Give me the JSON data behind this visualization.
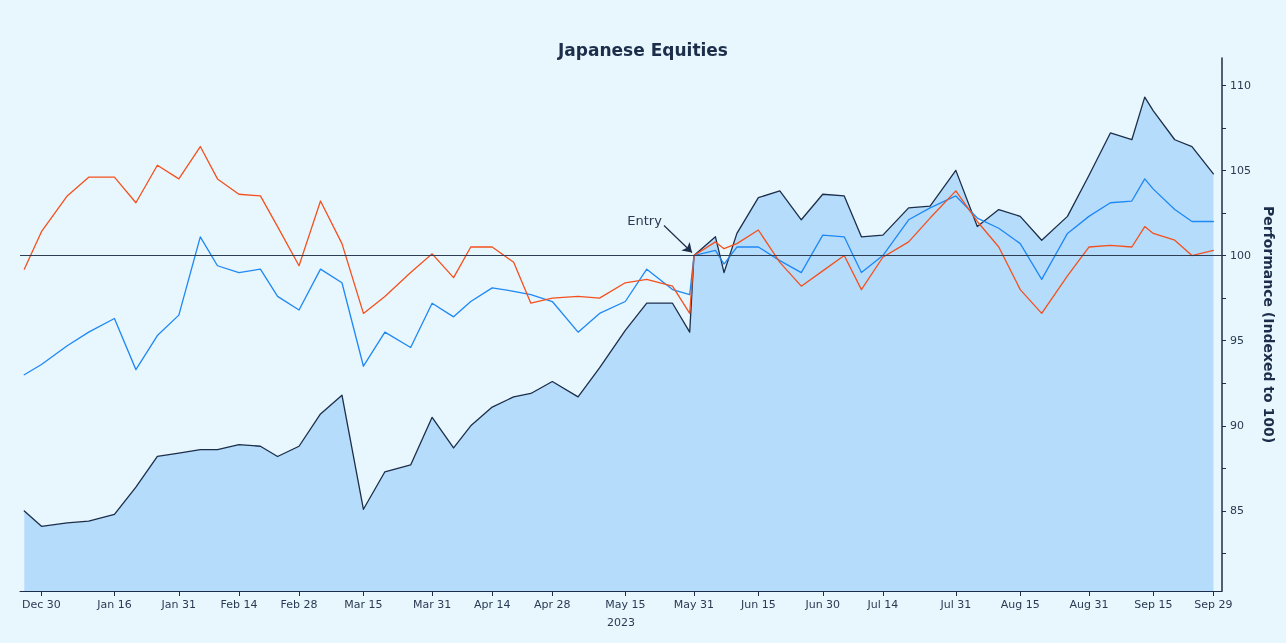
{
  "chart_data": {
    "type": "line",
    "title": "Japanese Equities",
    "xlabel": "2023",
    "ylabel": "Performance (Indexed to 100)",
    "x": [
      "2022-12-26",
      "2022-12-30",
      "2023-01-05",
      "2023-01-10",
      "2023-01-16",
      "2023-01-21",
      "2023-01-26",
      "2023-01-31",
      "2023-02-05",
      "2023-02-09",
      "2023-02-14",
      "2023-02-19",
      "2023-02-23",
      "2023-02-28",
      "2023-03-05",
      "2023-03-10",
      "2023-03-15",
      "2023-03-20",
      "2023-03-26",
      "2023-03-31",
      "2023-04-05",
      "2023-04-09",
      "2023-04-14",
      "2023-04-19",
      "2023-04-23",
      "2023-04-28",
      "2023-05-04",
      "2023-05-09",
      "2023-05-15",
      "2023-05-20",
      "2023-05-26",
      "2023-05-30",
      "2023-05-31",
      "2023-06-05",
      "2023-06-07",
      "2023-06-10",
      "2023-06-15",
      "2023-06-20",
      "2023-06-25",
      "2023-06-30",
      "2023-07-05",
      "2023-07-09",
      "2023-07-14",
      "2023-07-20",
      "2023-07-25",
      "2023-07-31",
      "2023-08-05",
      "2023-08-10",
      "2023-08-15",
      "2023-08-20",
      "2023-08-26",
      "2023-08-31",
      "2023-09-05",
      "2023-09-10",
      "2023-09-13",
      "2023-09-15",
      "2023-09-20",
      "2023-09-24",
      "2023-09-29"
    ],
    "series": [
      {
        "type": "area",
        "color": "#1c2e4a",
        "values": [
          85.0,
          84.1,
          84.3,
          84.4,
          84.8,
          86.4,
          88.2,
          88.4,
          88.6,
          88.6,
          88.9,
          88.8,
          88.2,
          88.8,
          90.7,
          91.8,
          85.1,
          87.3,
          87.7,
          90.5,
          88.7,
          90.0,
          91.1,
          91.7,
          91.9,
          92.6,
          91.7,
          93.4,
          95.6,
          97.2,
          97.2,
          95.5,
          100.0,
          101.1,
          99.0,
          101.3,
          103.4,
          103.8,
          102.1,
          103.6,
          103.5,
          101.1,
          101.2,
          102.8,
          102.9,
          105.0,
          101.7,
          102.7,
          102.3,
          100.9,
          102.3,
          104.7,
          107.2,
          106.8,
          109.3,
          108.5,
          106.8,
          106.4,
          104.8
        ]
      },
      {
        "color": "#1e88f5",
        "values": [
          93.0,
          93.6,
          94.7,
          95.5,
          96.3,
          93.3,
          95.3,
          96.5,
          101.1,
          99.4,
          99.0,
          99.2,
          97.6,
          96.8,
          99.2,
          98.4,
          93.5,
          95.5,
          94.6,
          97.2,
          96.4,
          97.3,
          98.1,
          97.9,
          97.7,
          97.3,
          95.5,
          96.6,
          97.3,
          99.2,
          98.0,
          97.7,
          100.0,
          100.3,
          99.5,
          100.5,
          100.5,
          99.7,
          99.0,
          101.2,
          101.1,
          99.0,
          100.0,
          102.1,
          102.8,
          103.5,
          102.2,
          101.6,
          100.7,
          98.6,
          101.3,
          102.3,
          103.1,
          103.2,
          104.5,
          103.9,
          102.7,
          102.0,
          102.0
        ]
      },
      {
        "color": "#f4511e",
        "values": [
          99.2,
          101.4,
          103.5,
          104.6,
          104.6,
          103.1,
          105.3,
          104.5,
          106.4,
          104.5,
          103.6,
          103.5,
          101.7,
          99.4,
          103.2,
          100.7,
          96.6,
          97.6,
          99.0,
          100.1,
          98.7,
          100.5,
          100.5,
          99.6,
          97.2,
          97.5,
          97.6,
          97.5,
          98.4,
          98.6,
          98.2,
          96.6,
          100.0,
          100.8,
          100.4,
          100.7,
          101.5,
          99.6,
          98.2,
          99.1,
          100.0,
          98.0,
          99.9,
          100.8,
          102.2,
          103.8,
          102.0,
          100.5,
          98.0,
          96.6,
          98.8,
          100.5,
          100.6,
          100.5,
          101.7,
          101.3,
          100.9,
          100.0,
          100.3
        ]
      }
    ],
    "xlim": [
      "2022-12-25",
      "2023-10-01"
    ],
    "xticks": [
      {
        "value": "2022-12-30",
        "label": "Dec 30"
      },
      {
        "value": "2023-01-16",
        "label": "Jan 16"
      },
      {
        "value": "2023-01-31",
        "label": "Jan 31"
      },
      {
        "value": "2023-02-14",
        "label": "Feb 14"
      },
      {
        "value": "2023-02-28",
        "label": "Feb 28"
      },
      {
        "value": "2023-03-15",
        "label": "Mar 15"
      },
      {
        "value": "2023-03-31",
        "label": "Mar 31"
      },
      {
        "value": "2023-04-14",
        "label": "Apr 14"
      },
      {
        "value": "2023-04-28",
        "label": "Apr 28"
      },
      {
        "value": "2023-05-15",
        "label": "May 15"
      },
      {
        "value": "2023-05-31",
        "label": "May 31"
      },
      {
        "value": "2023-06-15",
        "label": "Jun 15"
      },
      {
        "value": "2023-06-30",
        "label": "Jun 30"
      },
      {
        "value": "2023-07-14",
        "label": "Jul 14"
      },
      {
        "value": "2023-07-31",
        "label": "Jul 31"
      },
      {
        "value": "2023-08-15",
        "label": "Aug 15"
      },
      {
        "value": "2023-08-31",
        "label": "Aug 31"
      },
      {
        "value": "2023-09-15",
        "label": "Sep 15"
      },
      {
        "value": "2023-09-29",
        "label": "Sep 29"
      }
    ],
    "ylim": [
      80.3,
      111.6
    ],
    "yticks": [
      {
        "value": 82.5,
        "label": null
      },
      85,
      {
        "value": 87.5,
        "label": null
      },
      90,
      {
        "value": 92.5,
        "label": null
      },
      95,
      {
        "value": 97.5,
        "label": null
      },
      100,
      {
        "value": 102.5,
        "label": null
      },
      105,
      {
        "value": 107.5,
        "label": null
      },
      110
    ],
    "ref_lines": [
      {
        "axis": "y",
        "value": 100,
        "color": "#2d3e55"
      }
    ],
    "annotations": [
      {
        "text": "Entry",
        "x": "2023-05-31",
        "y": 100
      }
    ],
    "grid": false,
    "marker": "none",
    "line_style": "solid"
  }
}
